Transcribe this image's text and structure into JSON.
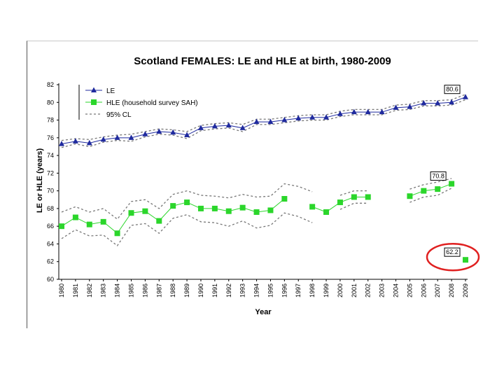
{
  "chart_data": {
    "type": "line",
    "title": "Scotland FEMALES: LE and HLE at birth, 1980-2009",
    "xlabel": "Year",
    "ylabel": "LE or HLE (years)",
    "ylim": [
      60,
      82
    ],
    "yticks": [
      "60",
      "62",
      "64",
      "66",
      "68",
      "70",
      "72",
      "74",
      "76",
      "78",
      "80",
      "82"
    ],
    "categories": [
      "1980",
      "1981",
      "1982",
      "1983",
      "1984",
      "1985",
      "1986",
      "1987",
      "1988",
      "1989",
      "1990",
      "1991",
      "1992",
      "1993",
      "1994",
      "1995",
      "1996",
      "1997",
      "1998",
      "1999",
      "2000",
      "2001",
      "2002",
      "2003",
      "2004",
      "2005",
      "2006",
      "2007",
      "2008",
      "2009"
    ],
    "grid": false,
    "legend_position": "top-left",
    "series": [
      {
        "name": "LE",
        "color": "#1f2a9e",
        "marker": "triangle",
        "values": [
          75.3,
          75.6,
          75.4,
          75.8,
          76.0,
          76.0,
          76.4,
          76.7,
          76.6,
          76.3,
          77.1,
          77.3,
          77.4,
          77.1,
          77.8,
          77.8,
          78.0,
          78.2,
          78.3,
          78.3,
          78.7,
          78.9,
          78.9,
          78.9,
          79.4,
          79.5,
          79.9,
          79.9,
          80.0,
          80.6
        ]
      },
      {
        "name": "HLE (household survey SAH)",
        "color": "#2bd62b",
        "marker": "square",
        "values": [
          66.0,
          67.0,
          66.2,
          66.5,
          65.2,
          67.5,
          67.7,
          66.6,
          68.3,
          68.7,
          68.0,
          68.0,
          67.7,
          68.1,
          67.6,
          67.8,
          69.1,
          null,
          68.2,
          67.6,
          68.7,
          69.3,
          69.3,
          null,
          null,
          69.4,
          70.0,
          70.2,
          70.8,
          null
        ]
      },
      {
        "name": "HLE 2009 value",
        "color": "#2bd62b",
        "marker": "square",
        "values": [
          null,
          null,
          null,
          null,
          null,
          null,
          null,
          null,
          null,
          null,
          null,
          null,
          null,
          null,
          null,
          null,
          null,
          null,
          null,
          null,
          null,
          null,
          null,
          null,
          null,
          null,
          null,
          null,
          null,
          62.2
        ]
      },
      {
        "name": "95% CL",
        "color": "#777777",
        "style": "dotted",
        "bands": {
          "le_upper": [
            75.7,
            75.9,
            75.8,
            76.1,
            76.3,
            76.4,
            76.7,
            77.0,
            76.9,
            76.7,
            77.4,
            77.6,
            77.7,
            77.5,
            78.1,
            78.1,
            78.3,
            78.5,
            78.6,
            78.6,
            79.0,
            79.2,
            79.2,
            79.2,
            79.7,
            79.8,
            80.2,
            80.2,
            80.3,
            80.9
          ],
          "le_lower": [
            74.9,
            75.3,
            75.0,
            75.5,
            75.7,
            75.6,
            76.1,
            76.4,
            76.3,
            75.9,
            76.8,
            77.0,
            77.1,
            76.7,
            77.5,
            77.5,
            77.7,
            77.9,
            78.0,
            78.0,
            78.4,
            78.6,
            78.6,
            78.6,
            79.1,
            79.2,
            79.6,
            79.6,
            79.7,
            80.3
          ],
          "hle_upper": [
            67.6,
            68.2,
            67.6,
            68.0,
            66.8,
            68.8,
            69.0,
            68.0,
            69.6,
            70.0,
            69.5,
            69.4,
            69.2,
            69.6,
            69.3,
            69.4,
            70.8,
            70.5,
            69.9,
            null,
            69.5,
            70.0,
            70.0,
            null,
            null,
            70.2,
            70.7,
            71.0,
            71.4,
            null
          ],
          "hle_lower": [
            64.6,
            65.6,
            64.9,
            65.0,
            63.8,
            66.1,
            66.3,
            65.2,
            66.9,
            67.3,
            66.5,
            66.4,
            66.0,
            66.6,
            65.8,
            66.1,
            67.5,
            67.1,
            66.4,
            null,
            67.9,
            68.6,
            68.6,
            null,
            null,
            68.7,
            69.3,
            69.5,
            70.3,
            null
          ]
        }
      }
    ],
    "legend": [
      "LE",
      "HLE (household survey SAH)",
      "95% CL"
    ],
    "annotations": [
      {
        "text": "80.6",
        "series": "LE",
        "year": "2009"
      },
      {
        "text": "70.8",
        "series": "HLE (household survey SAH)",
        "year": "2008"
      },
      {
        "text": "62.2",
        "series": "HLE 2009 value",
        "year": "2009",
        "highlight_color": "#e02020"
      }
    ]
  }
}
